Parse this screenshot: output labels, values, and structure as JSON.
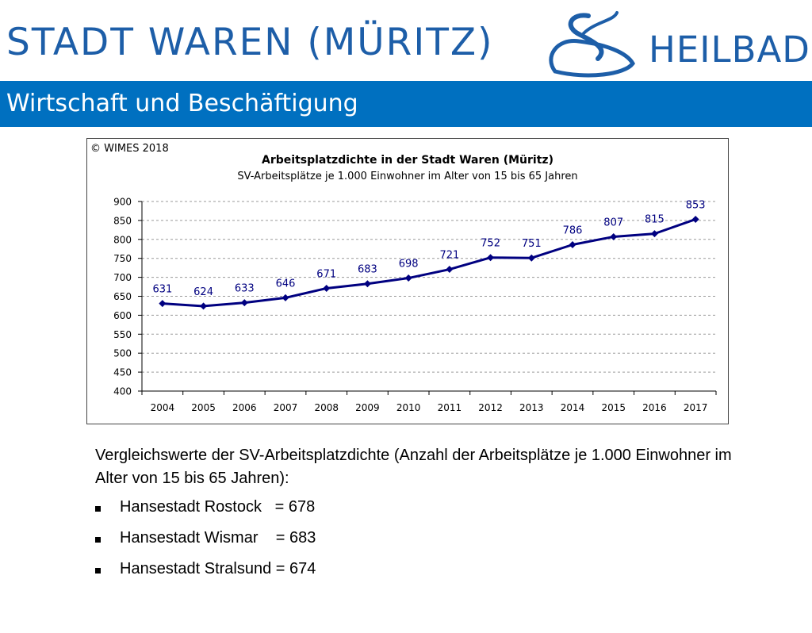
{
  "header": {
    "left_text": "STADT WAREN (MÜRITZ)",
    "right_text": "HEILBAD",
    "logo_icon": "wave-swirl-icon",
    "brand_color": "#1d5ea8"
  },
  "title_bar": {
    "title": "Wirtschaft und Beschäftigung",
    "color": "#0070c0"
  },
  "chart": {
    "copyright": "© WIMES 2018"
  },
  "chart_data": {
    "type": "line",
    "title": "Arbeitsplatzdichte in der Stadt Waren (Müritz)",
    "subtitle": "SV-Arbeitsplätze je 1.000 Einwohner  im Alter von 15 bis 65 Jahren",
    "categories": [
      "2004",
      "2005",
      "2006",
      "2007",
      "2008",
      "2009",
      "2010",
      "2011",
      "2012",
      "2013",
      "2014",
      "2015",
      "2016",
      "2017"
    ],
    "values": [
      631,
      624,
      633,
      646,
      671,
      683,
      698,
      721,
      752,
      751,
      786,
      807,
      815,
      853
    ],
    "y_ticks": [
      400,
      450,
      500,
      550,
      600,
      650,
      700,
      750,
      800,
      850,
      900
    ],
    "ylim": [
      400,
      900
    ],
    "grid": true,
    "line_color": "#000080",
    "label_color": "#000080"
  },
  "comparison": {
    "intro": "Vergleichswerte der SV-Arbeitsplatzdichte (Anzahl der Arbeitsplätze je 1.000 Einwohner im Alter von 15 bis 65 Jahren):",
    "items": [
      "Hansestadt Rostock   = 678",
      "Hansestadt Wismar    = 683",
      "Hansestadt Stralsund = 674"
    ]
  }
}
